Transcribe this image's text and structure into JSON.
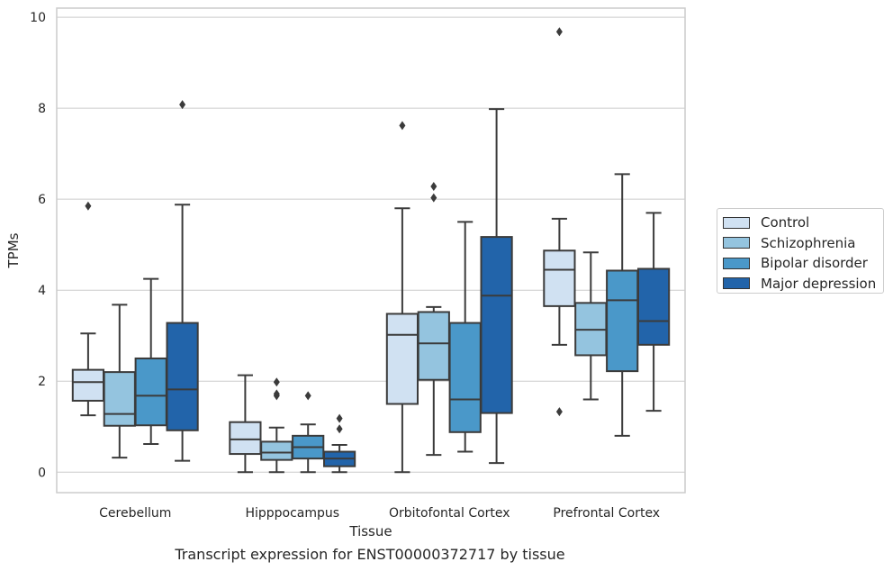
{
  "chart_data": {
    "type": "box",
    "title": "",
    "caption": "Transcript expression for ENST00000372717 by tissue",
    "xlabel": "Tissue",
    "ylabel": "TPMs",
    "ylim": [
      -0.45,
      10.2
    ],
    "yticks": [
      0,
      2,
      4,
      6,
      8,
      10
    ],
    "grid": true,
    "legend_position": "outside-right",
    "categories": [
      "Cerebellum",
      "Hipppocampus",
      "Orbitofontal Cortex",
      "Prefrontal Cortex"
    ],
    "series": [
      {
        "name": "Control",
        "color": "#d0e1f2",
        "boxes": [
          {
            "whislo": 1.25,
            "q1": 1.57,
            "med": 1.98,
            "q3": 2.25,
            "whishi": 3.05,
            "fliers": [
              5.85
            ]
          },
          {
            "whislo": 0.0,
            "q1": 0.4,
            "med": 0.72,
            "q3": 1.1,
            "whishi": 2.13,
            "fliers": []
          },
          {
            "whislo": 0.0,
            "q1": 1.5,
            "med": 3.02,
            "q3": 3.48,
            "whishi": 5.8,
            "fliers": [
              7.62
            ]
          },
          {
            "whislo": 2.8,
            "q1": 3.65,
            "med": 4.45,
            "q3": 4.87,
            "whishi": 5.57,
            "fliers": [
              9.68,
              1.33
            ]
          }
        ]
      },
      {
        "name": "Schizophrenia",
        "color": "#94c4df",
        "boxes": [
          {
            "whislo": 0.32,
            "q1": 1.02,
            "med": 1.28,
            "q3": 2.2,
            "whishi": 3.68,
            "fliers": []
          },
          {
            "whislo": 0.0,
            "q1": 0.27,
            "med": 0.43,
            "q3": 0.67,
            "whishi": 0.98,
            "fliers": [
              1.98,
              1.72,
              1.68
            ]
          },
          {
            "whislo": 0.38,
            "q1": 2.03,
            "med": 2.83,
            "q3": 3.52,
            "whishi": 3.63,
            "fliers": [
              6.28,
              6.03
            ]
          },
          {
            "whislo": 1.6,
            "q1": 2.57,
            "med": 3.13,
            "q3": 3.72,
            "whishi": 4.83,
            "fliers": []
          }
        ]
      },
      {
        "name": "Bipolar disorder",
        "color": "#4a98c9",
        "boxes": [
          {
            "whislo": 0.62,
            "q1": 1.03,
            "med": 1.68,
            "q3": 2.5,
            "whishi": 4.25,
            "fliers": []
          },
          {
            "whislo": 0.0,
            "q1": 0.3,
            "med": 0.55,
            "q3": 0.8,
            "whishi": 1.05,
            "fliers": [
              1.68
            ]
          },
          {
            "whislo": 0.45,
            "q1": 0.88,
            "med": 1.6,
            "q3": 3.28,
            "whishi": 5.5,
            "fliers": []
          },
          {
            "whislo": 0.8,
            "q1": 2.22,
            "med": 3.78,
            "q3": 4.43,
            "whishi": 6.55,
            "fliers": []
          }
        ]
      },
      {
        "name": "Major depression",
        "color": "#2264aa",
        "boxes": [
          {
            "whislo": 0.25,
            "q1": 0.92,
            "med": 1.82,
            "q3": 3.28,
            "whishi": 5.88,
            "fliers": [
              8.08
            ]
          },
          {
            "whislo": 0.0,
            "q1": 0.13,
            "med": 0.3,
            "q3": 0.45,
            "whishi": 0.6,
            "fliers": [
              1.18,
              0.95
            ]
          },
          {
            "whislo": 0.2,
            "q1": 1.3,
            "med": 3.88,
            "q3": 5.17,
            "whishi": 7.98,
            "fliers": []
          },
          {
            "whislo": 1.35,
            "q1": 2.8,
            "med": 3.32,
            "q3": 4.47,
            "whishi": 5.7,
            "fliers": []
          }
        ]
      }
    ]
  },
  "legend": {
    "items": [
      {
        "label": "Control",
        "color": "#d0e1f2"
      },
      {
        "label": "Schizophrenia",
        "color": "#94c4df"
      },
      {
        "label": "Bipolar disorder",
        "color": "#4a98c9"
      },
      {
        "label": "Major depression",
        "color": "#2264aa"
      }
    ]
  },
  "caption": "Transcript expression for ENST00000372717 by tissue"
}
